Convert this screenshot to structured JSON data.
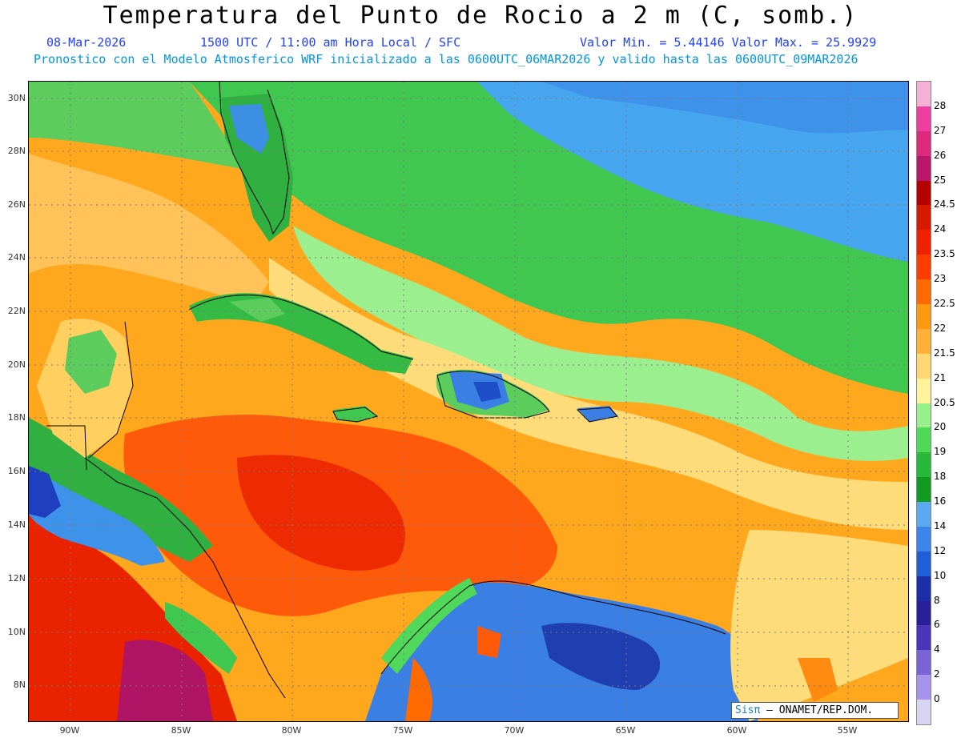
{
  "title": "Temperatura del Punto de Rocio a 2 m (C, somb.)",
  "subtitle_date": "08-Mar-2026",
  "subtitle_time": "1500 UTC / 11:00 am Hora Local / SFC",
  "subtitle_minmax": "Valor Min. = 5.44146  Valor Max. = 25.9929",
  "subtitle_model": "Pronostico con el Modelo Atmosferico WRF inicializado a las 0600UTC_06MAR2026 y valido hasta las  0600UTC_09MAR2026",
  "lat_labels": [
    "30N",
    "28N",
    "26N",
    "24N",
    "22N",
    "20N",
    "18N",
    "16N",
    "14N",
    "12N",
    "10N",
    "8N"
  ],
  "lon_labels": [
    "90W",
    "85W",
    "80W",
    "75W",
    "70W",
    "65W",
    "60W",
    "55W"
  ],
  "colorbar": {
    "labels": [
      "28",
      "27",
      "26",
      "25",
      "24.5",
      "24",
      "23.5",
      "23",
      "22.5",
      "22",
      "21.5",
      "21",
      "20.5",
      "20",
      "19",
      "18",
      "16",
      "14",
      "12",
      "10",
      "8",
      "6",
      "4",
      "2",
      "0"
    ],
    "colors": [
      "#f5b0d6",
      "#ee3fa0",
      "#dd2a7e",
      "#b8186a",
      "#b30000",
      "#d61a00",
      "#ee2200",
      "#ff3d00",
      "#ff6a00",
      "#ff9a10",
      "#ffb13a",
      "#ffd873",
      "#fff29a",
      "#98f08c",
      "#4fd85a",
      "#28b83a",
      "#139a22",
      "#5da8f0",
      "#3b84e8",
      "#1f5ed6",
      "#1c2fa8",
      "#2a1f96",
      "#4a34b8",
      "#7a63d4",
      "#a893ea",
      "#d8d5f2"
    ]
  },
  "credit": {
    "brand": "Sisπ",
    "text": "– ONAMET/REP.DOM."
  }
}
